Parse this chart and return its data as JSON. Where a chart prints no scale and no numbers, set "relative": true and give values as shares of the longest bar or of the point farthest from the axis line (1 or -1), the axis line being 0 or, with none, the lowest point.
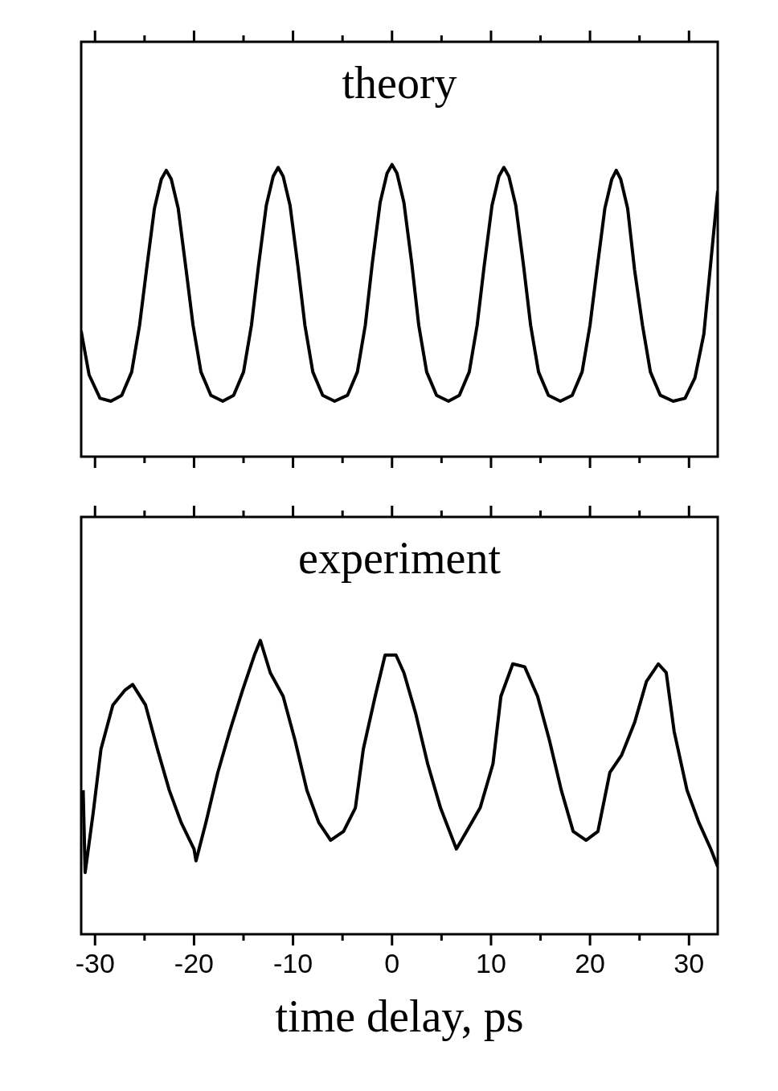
{
  "chart_data": [
    {
      "type": "line",
      "title": "theory",
      "relative": true,
      "tick_labels": false,
      "xlim": [
        -31.4,
        32.9
      ],
      "xticks": [
        {
          "value": -25,
          "label": null
        },
        -30,
        -20,
        {
          "value": -15,
          "label": null
        },
        -10,
        {
          "value": -5,
          "label": null
        },
        0,
        {
          "value": 5,
          "label": null
        },
        10,
        {
          "value": 15,
          "label": null
        },
        20,
        {
          "value": 25,
          "label": null
        },
        30
      ],
      "x": [
        -31.4,
        -30.6,
        -29.5,
        -28.4,
        -27.3,
        -26.3,
        -25.5,
        -24.8,
        -24.0,
        -23.3,
        -22.8,
        -22.3,
        -21.6,
        -20.8,
        -20.1,
        -19.3,
        -18.3,
        -17.1,
        -16.0,
        -15.0,
        -14.2,
        -13.5,
        -12.7,
        -12.0,
        -11.5,
        -11.0,
        -10.3,
        -9.5,
        -8.8,
        -8.0,
        -7.0,
        -5.8,
        -4.5,
        -3.5,
        -2.7,
        -2.0,
        -1.2,
        -0.5,
        0,
        0.5,
        1.2,
        2.0,
        2.7,
        3.5,
        4.5,
        5.7,
        6.8,
        7.8,
        8.6,
        9.3,
        10.1,
        10.8,
        11.3,
        11.8,
        12.5,
        13.3,
        14.0,
        14.8,
        15.8,
        17.0,
        18.2,
        19.2,
        20.0,
        20.7,
        21.5,
        22.2,
        22.65,
        23.1,
        23.8,
        24.5,
        25.3,
        26.1,
        27.1,
        28.4,
        29.6,
        30.6,
        31.5,
        32.3,
        32.9
      ],
      "series": [
        {
          "color": "#000000",
          "values": [
            0.43,
            0.28,
            0.2,
            0.19,
            0.21,
            0.29,
            0.45,
            0.64,
            0.85,
            0.95,
            0.98,
            0.95,
            0.85,
            0.64,
            0.45,
            0.29,
            0.21,
            0.19,
            0.21,
            0.29,
            0.45,
            0.65,
            0.86,
            0.96,
            0.99,
            0.96,
            0.86,
            0.65,
            0.45,
            0.29,
            0.21,
            0.19,
            0.21,
            0.29,
            0.45,
            0.66,
            0.87,
            0.97,
            1,
            0.97,
            0.87,
            0.66,
            0.45,
            0.29,
            0.21,
            0.19,
            0.21,
            0.29,
            0.45,
            0.65,
            0.86,
            0.96,
            0.99,
            0.96,
            0.86,
            0.65,
            0.45,
            0.29,
            0.21,
            0.19,
            0.21,
            0.29,
            0.45,
            0.64,
            0.85,
            0.95,
            0.98,
            0.95,
            0.85,
            0.64,
            0.45,
            0.29,
            0.21,
            0.19,
            0.2,
            0.27,
            0.42,
            0.7,
            0.91
          ]
        }
      ]
    },
    {
      "type": "line",
      "title": "experiment",
      "xlabel": "time delay, ps",
      "relative": true,
      "tick_labels": "x",
      "xlim": [
        -31.4,
        32.9
      ],
      "xticks": [
        {
          "value": -25,
          "label": null
        },
        -30,
        -20,
        {
          "value": -15,
          "label": null
        },
        -10,
        {
          "value": -5,
          "label": null
        },
        0,
        {
          "value": 5,
          "label": null
        },
        10,
        {
          "value": 15,
          "label": null
        },
        20,
        {
          "value": 25,
          "label": null
        },
        30
      ],
      "x": [
        -31.2,
        -31.0,
        -30.2,
        -29.4,
        -28.2,
        -27.0,
        -26.2,
        -24.9,
        -23.7,
        -22.5,
        -21.3,
        -20.0,
        -19.8,
        -18.8,
        -17.6,
        -16.4,
        -15.1,
        -13.9,
        -13.3,
        -12.3,
        -11.0,
        -9.8,
        -8.6,
        -7.4,
        -6.2,
        -4.9,
        -3.7,
        -2.9,
        -1.7,
        -0.7,
        0.4,
        1.2,
        2.4,
        3.6,
        4.9,
        6.5,
        7.7,
        8.9,
        10.2,
        11.0,
        12.2,
        13.4,
        14.7,
        15.9,
        17.1,
        18.3,
        19.6,
        20.8,
        22.0,
        23.2,
        24.5,
        25.7,
        26.9,
        27.7,
        28.5,
        29.8,
        31.0,
        32.2,
        32.9
      ],
      "series": [
        {
          "color": "#000000",
          "values": [
            0.49,
            0.21,
            0.41,
            0.63,
            0.78,
            0.83,
            0.85,
            0.78,
            0.63,
            0.49,
            0.38,
            0.29,
            0.25,
            0.38,
            0.55,
            0.69,
            0.83,
            0.95,
            1,
            0.89,
            0.81,
            0.66,
            0.49,
            0.38,
            0.32,
            0.35,
            0.43,
            0.63,
            0.81,
            0.95,
            0.95,
            0.89,
            0.75,
            0.58,
            0.43,
            0.29,
            0.36,
            0.43,
            0.58,
            0.81,
            0.92,
            0.91,
            0.81,
            0.66,
            0.49,
            0.35,
            0.32,
            0.35,
            0.55,
            0.61,
            0.72,
            0.86,
            0.92,
            0.89,
            0.69,
            0.49,
            0.38,
            0.29,
            0.23
          ]
        }
      ]
    }
  ]
}
